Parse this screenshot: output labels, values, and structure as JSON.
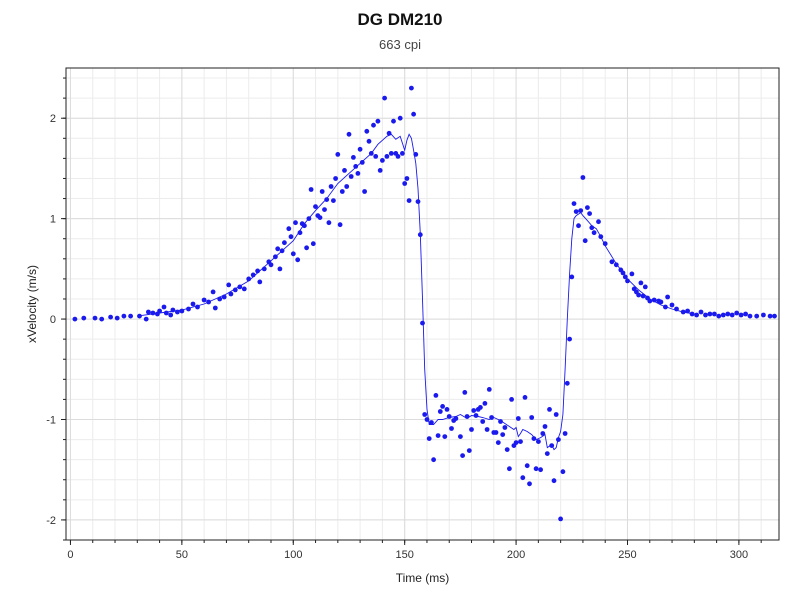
{
  "chart_data": {
    "type": "scatter",
    "title": "DG DM210",
    "subtitle": "663 cpi",
    "xlabel": "Time (ms)",
    "ylabel": "xVelocity (m/s)",
    "xlim": [
      -2,
      318
    ],
    "ylim": [
      -2.2,
      2.5
    ],
    "xticks": [
      0,
      50,
      100,
      150,
      200,
      250,
      300
    ],
    "yticks": [
      -2,
      -1,
      0,
      1,
      2
    ],
    "grid": true,
    "legend": "none",
    "series": [
      {
        "kind": "points",
        "color": "#1a1aee",
        "points": [
          [
            2,
            0.0
          ],
          [
            6,
            0.01
          ],
          [
            11,
            0.01
          ],
          [
            14,
            0.0
          ],
          [
            18,
            0.02
          ],
          [
            21,
            0.01
          ],
          [
            24,
            0.03
          ],
          [
            27,
            0.03
          ],
          [
            31,
            0.03
          ],
          [
            34,
            0.0
          ],
          [
            35,
            0.07
          ],
          [
            37,
            0.06
          ],
          [
            39,
            0.05
          ],
          [
            40,
            0.08
          ],
          [
            42,
            0.12
          ],
          [
            43,
            0.06
          ],
          [
            45,
            0.04
          ],
          [
            46,
            0.09
          ],
          [
            48,
            0.07
          ],
          [
            50,
            0.08
          ],
          [
            53,
            0.1
          ],
          [
            55,
            0.15
          ],
          [
            57,
            0.12
          ],
          [
            60,
            0.19
          ],
          [
            62,
            0.17
          ],
          [
            64,
            0.27
          ],
          [
            65,
            0.11
          ],
          [
            67,
            0.2
          ],
          [
            69,
            0.22
          ],
          [
            71,
            0.34
          ],
          [
            72,
            0.25
          ],
          [
            74,
            0.29
          ],
          [
            76,
            0.32
          ],
          [
            78,
            0.3
          ],
          [
            80,
            0.4
          ],
          [
            82,
            0.44
          ],
          [
            84,
            0.48
          ],
          [
            85,
            0.37
          ],
          [
            87,
            0.5
          ],
          [
            89,
            0.57
          ],
          [
            90,
            0.54
          ],
          [
            92,
            0.62
          ],
          [
            93,
            0.7
          ],
          [
            94,
            0.5
          ],
          [
            95,
            0.68
          ],
          [
            96,
            0.76
          ],
          [
            98,
            0.9
          ],
          [
            99,
            0.82
          ],
          [
            100,
            0.65
          ],
          [
            101,
            0.96
          ],
          [
            102,
            0.59
          ],
          [
            103,
            0.86
          ],
          [
            104,
            0.95
          ],
          [
            105,
            0.93
          ],
          [
            106,
            0.71
          ],
          [
            107,
            1.0
          ],
          [
            108,
            1.29
          ],
          [
            109,
            0.75
          ],
          [
            110,
            1.12
          ],
          [
            111,
            1.03
          ],
          [
            112,
            1.01
          ],
          [
            113,
            1.27
          ],
          [
            114,
            1.09
          ],
          [
            115,
            1.19
          ],
          [
            116,
            0.96
          ],
          [
            117,
            1.32
          ],
          [
            118,
            1.18
          ],
          [
            119,
            1.4
          ],
          [
            120,
            1.64
          ],
          [
            121,
            0.94
          ],
          [
            122,
            1.27
          ],
          [
            123,
            1.48
          ],
          [
            124,
            1.32
          ],
          [
            125,
            1.84
          ],
          [
            126,
            1.42
          ],
          [
            127,
            1.61
          ],
          [
            128,
            1.52
          ],
          [
            129,
            1.45
          ],
          [
            130,
            1.69
          ],
          [
            131,
            1.56
          ],
          [
            132,
            1.27
          ],
          [
            133,
            1.87
          ],
          [
            134,
            1.77
          ],
          [
            135,
            1.65
          ],
          [
            136,
            1.93
          ],
          [
            137,
            1.62
          ],
          [
            138,
            1.97
          ],
          [
            139,
            1.48
          ],
          [
            140,
            1.58
          ],
          [
            141,
            2.2
          ],
          [
            142,
            1.62
          ],
          [
            143,
            1.85
          ],
          [
            144,
            1.65
          ],
          [
            145,
            1.97
          ],
          [
            146,
            1.65
          ],
          [
            147,
            1.62
          ],
          [
            148,
            2.0
          ],
          [
            149,
            1.65
          ],
          [
            150,
            1.35
          ],
          [
            151,
            1.4
          ],
          [
            152,
            1.18
          ],
          [
            153,
            2.3
          ],
          [
            154,
            2.04
          ],
          [
            155,
            1.64
          ],
          [
            156,
            1.17
          ],
          [
            157,
            0.84
          ],
          [
            158,
            -0.04
          ],
          [
            159,
            -0.95
          ],
          [
            160,
            -1.0
          ],
          [
            161,
            -1.19
          ],
          [
            162,
            -1.03
          ],
          [
            163,
            -1.4
          ],
          [
            164,
            -0.76
          ],
          [
            165,
            -1.16
          ],
          [
            166,
            -0.92
          ],
          [
            167,
            -0.87
          ],
          [
            168,
            -1.17
          ],
          [
            169,
            -0.9
          ],
          [
            170,
            -0.97
          ],
          [
            171,
            -1.09
          ],
          [
            172,
            -1.01
          ],
          [
            173,
            -0.99
          ],
          [
            175,
            -1.17
          ],
          [
            176,
            -1.36
          ],
          [
            177,
            -0.73
          ],
          [
            178,
            -0.97
          ],
          [
            179,
            -1.31
          ],
          [
            180,
            -1.1
          ],
          [
            181,
            -0.91
          ],
          [
            182,
            -0.96
          ],
          [
            183,
            -0.9
          ],
          [
            184,
            -0.88
          ],
          [
            185,
            -1.02
          ],
          [
            186,
            -0.84
          ],
          [
            187,
            -1.1
          ],
          [
            188,
            -0.7
          ],
          [
            189,
            -0.98
          ],
          [
            190,
            -1.13
          ],
          [
            191,
            -1.13
          ],
          [
            192,
            -1.23
          ],
          [
            193,
            -1.02
          ],
          [
            194,
            -1.15
          ],
          [
            195,
            -1.08
          ],
          [
            196,
            -1.3
          ],
          [
            197,
            -1.49
          ],
          [
            198,
            -0.8
          ],
          [
            199,
            -1.26
          ],
          [
            200,
            -1.23
          ],
          [
            201,
            -0.99
          ],
          [
            202,
            -1.22
          ],
          [
            203,
            -1.58
          ],
          [
            204,
            -0.78
          ],
          [
            205,
            -1.46
          ],
          [
            206,
            -1.64
          ],
          [
            207,
            -0.98
          ],
          [
            208,
            -1.19
          ],
          [
            209,
            -1.49
          ],
          [
            210,
            -1.22
          ],
          [
            211,
            -1.5
          ],
          [
            212,
            -1.14
          ],
          [
            213,
            -1.07
          ],
          [
            214,
            -1.34
          ],
          [
            215,
            -0.9
          ],
          [
            216,
            -1.26
          ],
          [
            217,
            -1.61
          ],
          [
            218,
            -0.95
          ],
          [
            219,
            -1.2
          ],
          [
            220,
            -1.99
          ],
          [
            221,
            -1.52
          ],
          [
            222,
            -1.14
          ],
          [
            223,
            -0.64
          ],
          [
            224,
            -0.2
          ],
          [
            225,
            0.42
          ],
          [
            226,
            1.15
          ],
          [
            227,
            1.07
          ],
          [
            228,
            0.93
          ],
          [
            229,
            1.08
          ],
          [
            230,
            1.41
          ],
          [
            231,
            0.78
          ],
          [
            232,
            1.11
          ],
          [
            233,
            1.05
          ],
          [
            234,
            0.91
          ],
          [
            235,
            0.86
          ],
          [
            237,
            0.97
          ],
          [
            238,
            0.82
          ],
          [
            240,
            0.75
          ],
          [
            243,
            0.57
          ],
          [
            245,
            0.54
          ],
          [
            247,
            0.49
          ],
          [
            248,
            0.46
          ],
          [
            249,
            0.42
          ],
          [
            250,
            0.38
          ],
          [
            252,
            0.45
          ],
          [
            253,
            0.3
          ],
          [
            254,
            0.27
          ],
          [
            255,
            0.24
          ],
          [
            256,
            0.36
          ],
          [
            257,
            0.23
          ],
          [
            258,
            0.32
          ],
          [
            259,
            0.21
          ],
          [
            260,
            0.18
          ],
          [
            262,
            0.19
          ],
          [
            264,
            0.18
          ],
          [
            265,
            0.17
          ],
          [
            267,
            0.12
          ],
          [
            268,
            0.22
          ],
          [
            270,
            0.14
          ],
          [
            272,
            0.1
          ],
          [
            275,
            0.07
          ],
          [
            277,
            0.08
          ],
          [
            279,
            0.05
          ],
          [
            281,
            0.04
          ],
          [
            283,
            0.07
          ],
          [
            285,
            0.04
          ],
          [
            287,
            0.05
          ],
          [
            289,
            0.05
          ],
          [
            291,
            0.03
          ],
          [
            293,
            0.04
          ],
          [
            295,
            0.05
          ],
          [
            297,
            0.04
          ],
          [
            299,
            0.06
          ],
          [
            301,
            0.04
          ],
          [
            303,
            0.05
          ],
          [
            305,
            0.03
          ],
          [
            308,
            0.03
          ],
          [
            311,
            0.04
          ],
          [
            314,
            0.03
          ],
          [
            316,
            0.03
          ]
        ]
      },
      {
        "kind": "line",
        "color": "#1a1aee",
        "points": [
          [
            30,
            0.03
          ],
          [
            40,
            0.06
          ],
          [
            50,
            0.09
          ],
          [
            60,
            0.15
          ],
          [
            70,
            0.25
          ],
          [
            80,
            0.38
          ],
          [
            90,
            0.58
          ],
          [
            95,
            0.68
          ],
          [
            100,
            0.78
          ],
          [
            105,
            0.95
          ],
          [
            110,
            1.08
          ],
          [
            115,
            1.2
          ],
          [
            120,
            1.35
          ],
          [
            125,
            1.45
          ],
          [
            130,
            1.55
          ],
          [
            135,
            1.65
          ],
          [
            138,
            1.74
          ],
          [
            140,
            1.78
          ],
          [
            142,
            1.82
          ],
          [
            144,
            1.84
          ],
          [
            146,
            1.79
          ],
          [
            148,
            1.82
          ],
          [
            150,
            1.68
          ],
          [
            151,
            1.78
          ],
          [
            152,
            1.84
          ],
          [
            153,
            1.8
          ],
          [
            154,
            1.68
          ],
          [
            155,
            1.55
          ],
          [
            156,
            1.3
          ],
          [
            157,
            0.85
          ],
          [
            158,
            0.2
          ],
          [
            159,
            -0.5
          ],
          [
            160,
            -0.9
          ],
          [
            161,
            -1.05
          ],
          [
            163,
            -1.05
          ],
          [
            165,
            -1.0
          ],
          [
            167,
            -1.0
          ],
          [
            170,
            -0.98
          ],
          [
            173,
            -0.97
          ],
          [
            175,
            -0.95
          ],
          [
            178,
            -0.99
          ],
          [
            180,
            -0.96
          ],
          [
            183,
            -0.97
          ],
          [
            185,
            -0.98
          ],
          [
            188,
            -1.0
          ],
          [
            190,
            -0.98
          ],
          [
            193,
            -1.01
          ],
          [
            195,
            -1.04
          ],
          [
            197,
            -1.07
          ],
          [
            199,
            -1.1
          ],
          [
            200,
            -1.08
          ],
          [
            201,
            -1.17
          ],
          [
            202,
            -1.14
          ],
          [
            203,
            -1.1
          ],
          [
            205,
            -1.12
          ],
          [
            207,
            -1.15
          ],
          [
            209,
            -1.2
          ],
          [
            211,
            -1.18
          ],
          [
            213,
            -1.15
          ],
          [
            214,
            -1.28
          ],
          [
            216,
            -1.25
          ],
          [
            217,
            -1.3
          ],
          [
            218,
            -1.28
          ],
          [
            219,
            -1.18
          ],
          [
            220,
            -1.12
          ],
          [
            221,
            -0.95
          ],
          [
            222,
            -0.5
          ],
          [
            223,
            0.0
          ],
          [
            224,
            0.45
          ],
          [
            225,
            0.8
          ],
          [
            226,
            1.0
          ],
          [
            227,
            1.03
          ],
          [
            229,
            1.06
          ],
          [
            230,
            1.03
          ],
          [
            232,
            0.98
          ],
          [
            234,
            0.93
          ],
          [
            236,
            0.9
          ],
          [
            238,
            0.82
          ],
          [
            240,
            0.73
          ],
          [
            245,
            0.55
          ],
          [
            250,
            0.4
          ],
          [
            255,
            0.29
          ],
          [
            260,
            0.2
          ],
          [
            265,
            0.14
          ],
          [
            270,
            0.1
          ],
          [
            275,
            0.07
          ],
          [
            280,
            0.05
          ]
        ]
      }
    ]
  }
}
